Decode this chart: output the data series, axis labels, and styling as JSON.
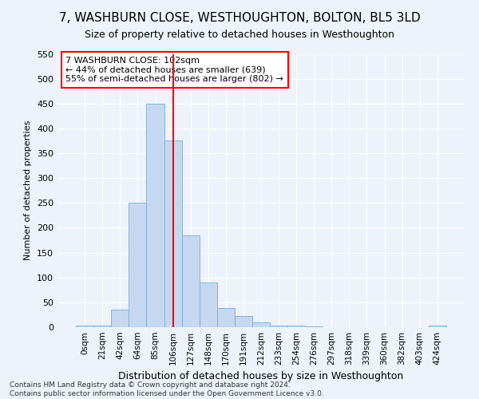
{
  "title": "7, WASHBURN CLOSE, WESTHOUGHTON, BOLTON, BL5 3LD",
  "subtitle": "Size of property relative to detached houses in Westhoughton",
  "xlabel": "Distribution of detached houses by size in Westhoughton",
  "ylabel": "Number of detached properties",
  "bar_values": [
    3,
    3,
    35,
    250,
    450,
    375,
    185,
    90,
    38,
    22,
    10,
    3,
    3,
    2,
    0,
    0,
    0,
    0,
    0,
    0,
    3
  ],
  "bar_labels": [
    "0sqm",
    "21sqm",
    "42sqm",
    "64sqm",
    "85sqm",
    "106sqm",
    "127sqm",
    "148sqm",
    "170sqm",
    "191sqm",
    "212sqm",
    "233sqm",
    "254sqm",
    "276sqm",
    "297sqm",
    "318sqm",
    "339sqm",
    "360sqm",
    "382sqm",
    "403sqm",
    "424sqm"
  ],
  "bar_color": "#c5d8f0",
  "bar_edgecolor": "#7aadd4",
  "vline_x": 5.0,
  "vline_color": "red",
  "annotation_text": "7 WASHBURN CLOSE: 102sqm\n← 44% of detached houses are smaller (639)\n55% of semi-detached houses are larger (802) →",
  "annotation_box_color": "white",
  "annotation_box_edgecolor": "red",
  "ylim": [
    0,
    550
  ],
  "yticks": [
    0,
    50,
    100,
    150,
    200,
    250,
    300,
    350,
    400,
    450,
    500,
    550
  ],
  "footer_line1": "Contains HM Land Registry data © Crown copyright and database right 2024.",
  "footer_line2": "Contains public sector information licensed under the Open Government Licence v3.0.",
  "bg_color": "#eef2fa",
  "grid_color": "#ffffff",
  "title_fontsize": 11,
  "subtitle_fontsize": 9,
  "xlabel_fontsize": 9,
  "ylabel_fontsize": 8
}
